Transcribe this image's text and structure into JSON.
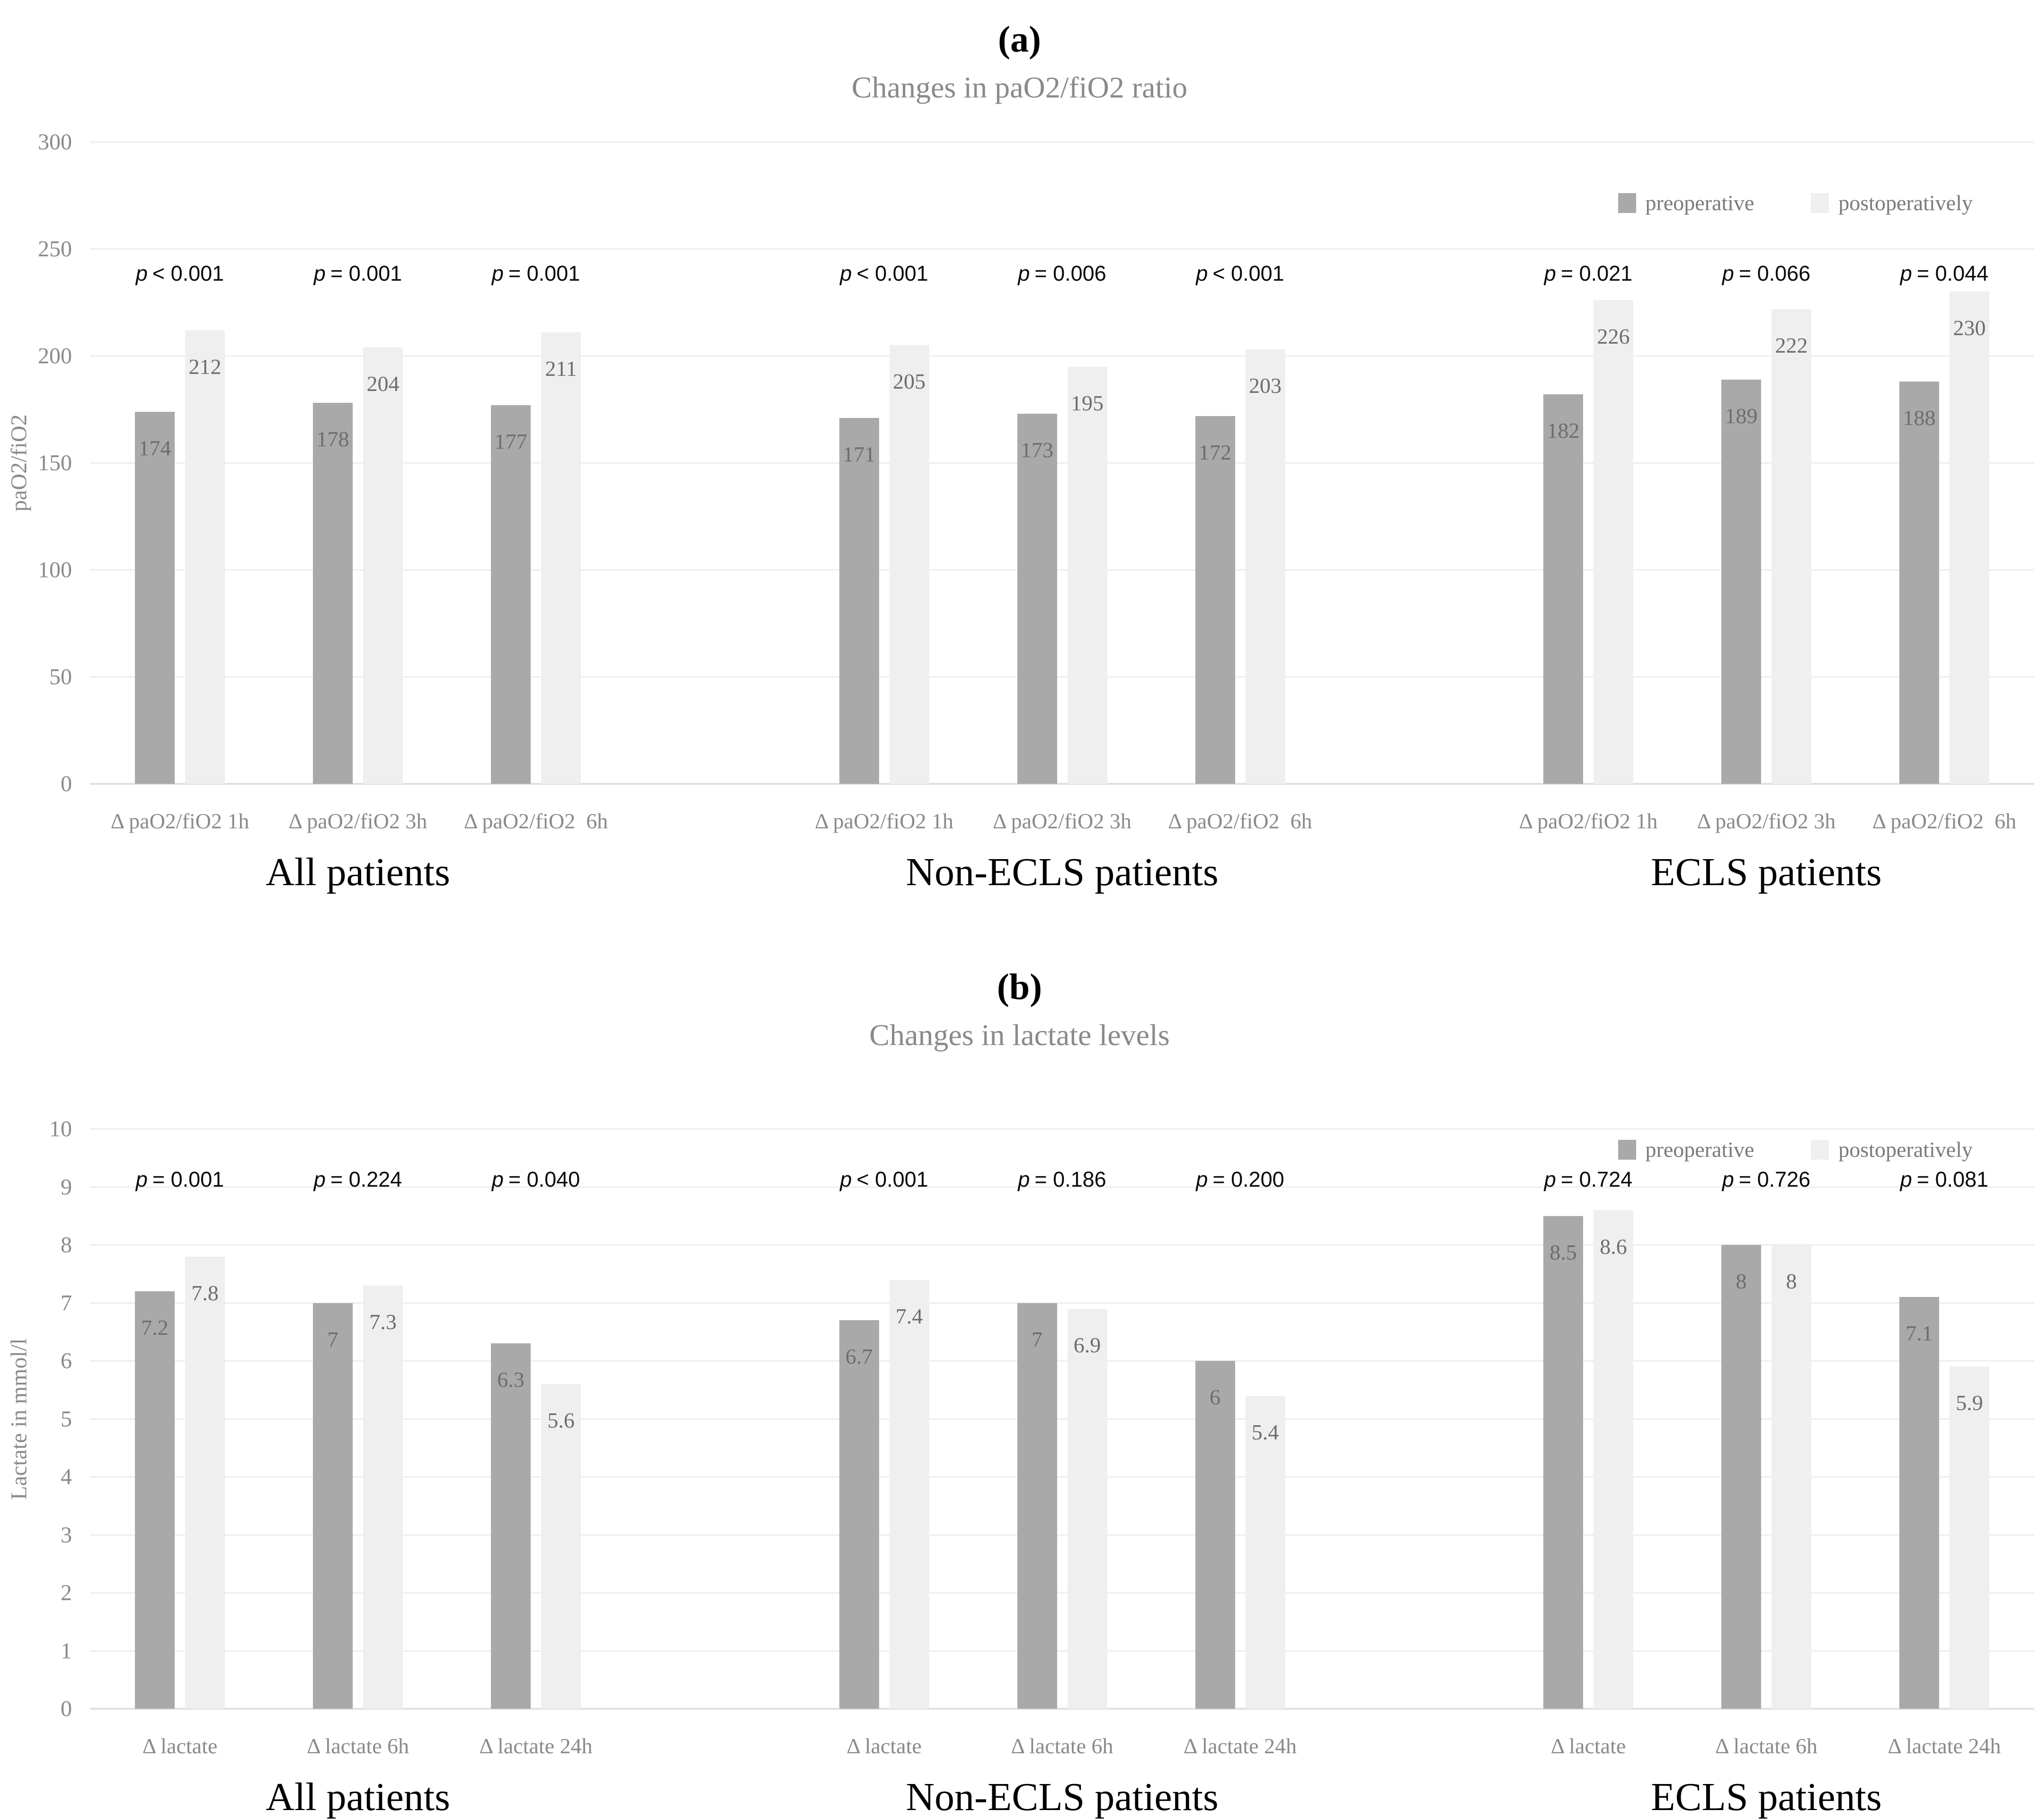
{
  "p_symbol": "p",
  "colors": {
    "preoperative_bar": "#a9a9a9",
    "postoperative_bar": "#efefef",
    "gridline": "#f1f1f1",
    "title_text": "#8a8a8a",
    "value_label_text": "#6d6d6d",
    "group_label_text": "#000000"
  },
  "chart_data": [
    {
      "type": "bar",
      "panel_label": "(a)",
      "title": "Changes in paO2/fiO2 ratio",
      "ylabel": "paO2/fiO2",
      "ylim": [
        0,
        300
      ],
      "ytick_step": 50,
      "yticks": [
        "300",
        "250",
        "200",
        "150",
        "100",
        "50",
        "0"
      ],
      "grid": "on",
      "legend_position": "top-right",
      "legend": [
        "preoperative",
        "postoperatively"
      ],
      "groups": [
        {
          "name": "All patients",
          "pairs": [
            {
              "category": "Δ paO2/fiO2 1h",
              "p": "< 0.001",
              "pre": "174",
              "post": "212"
            },
            {
              "category": "Δ paO2/fiO2 3h",
              "p": "= 0.001",
              "pre": "178",
              "post": "204"
            },
            {
              "category": "Δ paO2/fiO2  6h",
              "p": "= 0.001",
              "pre": "177",
              "post": "211"
            }
          ]
        },
        {
          "name": "Non-ECLS patients",
          "pairs": [
            {
              "category": "Δ paO2/fiO2 1h",
              "p": "< 0.001",
              "pre": "171",
              "post": "205"
            },
            {
              "category": "Δ paO2/fiO2 3h",
              "p": "= 0.006",
              "pre": "173",
              "post": "195"
            },
            {
              "category": "Δ paO2/fiO2  6h",
              "p": "< 0.001",
              "pre": "172",
              "post": "203"
            }
          ]
        },
        {
          "name": "ECLS patients",
          "pairs": [
            {
              "category": "Δ paO2/fiO2 1h",
              "p": "= 0.021",
              "pre": "182",
              "post": "226"
            },
            {
              "category": "Δ paO2/fiO2 3h",
              "p": "= 0.066",
              "pre": "189",
              "post": "222"
            },
            {
              "category": "Δ paO2/fiO2  6h",
              "p": "= 0.044",
              "pre": "188",
              "post": "230"
            }
          ]
        }
      ]
    },
    {
      "type": "bar",
      "panel_label": "(b)",
      "title": "Changes in lactate levels",
      "ylabel": "Lactate in mmol/l",
      "ylim": [
        0,
        10
      ],
      "ytick_step": 1,
      "yticks": [
        "10",
        "9",
        "8",
        "7",
        "6",
        "5",
        "4",
        "3",
        "2",
        "1",
        "0"
      ],
      "grid": "on",
      "legend_position": "top-right",
      "legend": [
        "preoperative",
        "postoperatively"
      ],
      "groups": [
        {
          "name": "All patients",
          "pairs": [
            {
              "category": "Δ lactate",
              "p": "= 0.001",
              "pre": "7.2",
              "post": "7.8"
            },
            {
              "category": "Δ lactate 6h",
              "p": "= 0.224",
              "pre": "7",
              "post": "7.3"
            },
            {
              "category": "Δ lactate 24h",
              "p": "= 0.040",
              "pre": "6.3",
              "post": "5.6"
            }
          ]
        },
        {
          "name": "Non-ECLS patients",
          "pairs": [
            {
              "category": "Δ lactate",
              "p": "< 0.001",
              "pre": "6.7",
              "post": "7.4"
            },
            {
              "category": "Δ lactate 6h",
              "p": "= 0.186",
              "pre": "7",
              "post": "6.9"
            },
            {
              "category": "Δ lactate 24h",
              "p": "= 0.200",
              "pre": "6",
              "post": "5.4"
            }
          ]
        },
        {
          "name": "ECLS patients",
          "pairs": [
            {
              "category": "Δ lactate",
              "p": "= 0.724",
              "pre": "8.5",
              "post": "8.6"
            },
            {
              "category": "Δ lactate 6h",
              "p": "= 0.726",
              "pre": "8",
              "post": "8"
            },
            {
              "category": "Δ lactate 24h",
              "p": "= 0.081",
              "pre": "7.1",
              "post": "5.9"
            }
          ]
        }
      ]
    }
  ]
}
